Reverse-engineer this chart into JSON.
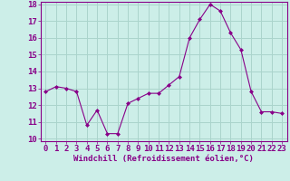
{
  "x": [
    0,
    1,
    2,
    3,
    4,
    5,
    6,
    7,
    8,
    9,
    10,
    11,
    12,
    13,
    14,
    15,
    16,
    17,
    18,
    19,
    20,
    21,
    22,
    23
  ],
  "y": [
    12.8,
    13.1,
    13.0,
    12.8,
    10.8,
    11.7,
    10.3,
    10.3,
    12.1,
    12.4,
    12.7,
    12.7,
    13.2,
    13.7,
    16.0,
    17.1,
    18.0,
    17.6,
    16.3,
    15.3,
    12.8,
    11.6,
    11.6,
    11.5
  ],
  "bg_color": "#cceee8",
  "line_color": "#880088",
  "marker_color": "#880088",
  "grid_color": "#aad4cc",
  "xlabel": "Windchill (Refroidissement éolien,°C)",
  "ylim": [
    10,
    18
  ],
  "xlim": [
    -0.5,
    23.5
  ],
  "yticks": [
    10,
    11,
    12,
    13,
    14,
    15,
    16,
    17,
    18
  ],
  "xticks": [
    0,
    1,
    2,
    3,
    4,
    5,
    6,
    7,
    8,
    9,
    10,
    11,
    12,
    13,
    14,
    15,
    16,
    17,
    18,
    19,
    20,
    21,
    22,
    23
  ],
  "xlabel_fontsize": 6.5,
  "tick_fontsize": 6.5,
  "axis_color": "#880088"
}
